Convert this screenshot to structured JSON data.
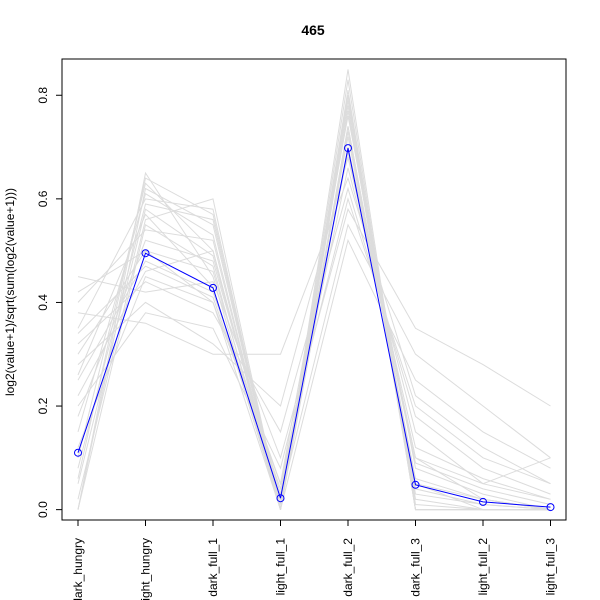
{
  "chart_data": {
    "type": "line",
    "title": "465",
    "xlabel": "",
    "ylabel": "log2(value+1)/sqrt(sum(log2(value+1)))",
    "categories": [
      "dark_hungry",
      "light_hungry",
      "dark_full_1",
      "light_full_1",
      "dark_full_2",
      "dark_full_3",
      "light_full_2",
      "light_full_3"
    ],
    "yticks": [
      0.0,
      0.2,
      0.4,
      0.6,
      0.8
    ],
    "ytick_labels": [
      "0.0",
      "0.2",
      "0.4",
      "0.6",
      "0.8"
    ],
    "ylim": [
      -0.02,
      0.87
    ],
    "grid": false,
    "legend": "none",
    "highlight": {
      "values": [
        0.11,
        0.495,
        0.428,
        0.022,
        0.698,
        0.048,
        0.015,
        0.005
      ],
      "color": "#0000ff",
      "marker": "open-circle"
    },
    "background_series_color": "#dcdcdc",
    "background_series": [
      [
        0.0,
        0.62,
        0.55,
        0.0,
        0.74,
        0.05,
        0.0,
        0.0
      ],
      [
        0.05,
        0.58,
        0.49,
        0.02,
        0.7,
        0.1,
        0.02,
        0.0
      ],
      [
        0.12,
        0.45,
        0.4,
        0.05,
        0.66,
        0.15,
        0.05,
        0.02
      ],
      [
        0.2,
        0.38,
        0.35,
        0.08,
        0.6,
        0.2,
        0.1,
        0.05
      ],
      [
        0.3,
        0.5,
        0.46,
        0.02,
        0.55,
        0.3,
        0.2,
        0.1
      ],
      [
        0.4,
        0.54,
        0.52,
        0.0,
        0.52,
        0.25,
        0.15,
        0.08
      ],
      [
        0.45,
        0.42,
        0.44,
        0.1,
        0.58,
        0.35,
        0.28,
        0.2
      ],
      [
        0.35,
        0.6,
        0.58,
        0.0,
        0.8,
        0.02,
        0.0,
        0.0
      ],
      [
        0.1,
        0.63,
        0.5,
        0.0,
        0.83,
        0.0,
        0.0,
        0.0
      ],
      [
        0.25,
        0.48,
        0.42,
        0.05,
        0.76,
        0.08,
        0.03,
        0.0
      ],
      [
        0.02,
        0.56,
        0.6,
        0.0,
        0.78,
        0.0,
        0.0,
        0.0
      ],
      [
        0.0,
        0.65,
        0.45,
        0.0,
        0.8,
        0.0,
        0.0,
        0.0
      ],
      [
        0.32,
        0.44,
        0.38,
        0.15,
        0.62,
        0.18,
        0.08,
        0.03
      ],
      [
        0.18,
        0.52,
        0.48,
        0.03,
        0.72,
        0.06,
        0.02,
        0.0
      ],
      [
        0.08,
        0.59,
        0.56,
        0.0,
        0.77,
        0.03,
        0.01,
        0.0
      ],
      [
        0.28,
        0.4,
        0.32,
        0.2,
        0.68,
        0.12,
        0.06,
        0.02
      ],
      [
        0.22,
        0.46,
        0.5,
        0.01,
        0.74,
        0.04,
        0.01,
        0.0
      ],
      [
        0.38,
        0.36,
        0.3,
        0.3,
        0.64,
        0.22,
        0.12,
        0.05
      ],
      [
        0.15,
        0.61,
        0.53,
        0.0,
        0.81,
        0.01,
        0.0,
        0.0
      ],
      [
        0.42,
        0.5,
        0.4,
        0.0,
        0.7,
        0.1,
        0.05,
        0.1
      ],
      [
        0.0,
        0.55,
        0.47,
        0.0,
        0.85,
        0.0,
        0.0,
        0.0
      ],
      [
        0.26,
        0.57,
        0.43,
        0.0,
        0.73,
        0.05,
        0.02,
        0.0
      ],
      [
        0.34,
        0.47,
        0.41,
        0.04,
        0.69,
        0.09,
        0.04,
        0.01
      ],
      [
        0.06,
        0.64,
        0.57,
        0.0,
        0.79,
        0.0,
        0.0,
        0.0
      ]
    ]
  }
}
